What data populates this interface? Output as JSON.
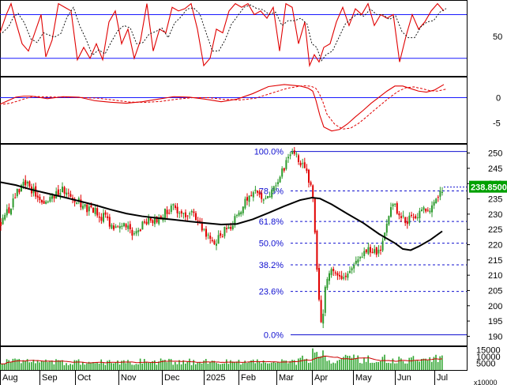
{
  "chart_data": {
    "type": "candlestick",
    "x_labels": [
      "Aug",
      "Sep",
      "Oct",
      "Nov",
      "Dec",
      "2025",
      "Feb",
      "Mar",
      "Apr",
      "May",
      "Jun",
      "Jul"
    ],
    "price_panel": {
      "y_ticks": [
        "250",
        "245",
        "240",
        "235",
        "230",
        "225",
        "220",
        "215",
        "210",
        "205",
        "200",
        "195",
        "190"
      ],
      "ylim": [
        187,
        253
      ],
      "current_price_label": "238.8500",
      "current_price": 238.85,
      "fibonacci": {
        "high": 250.5,
        "low": 190.5,
        "levels": [
          {
            "label": "100.0%",
            "value": 250.5
          },
          {
            "label": "78.6%",
            "value": 237.6
          },
          {
            "label": "61.8%",
            "value": 227.6
          },
          {
            "label": "50.0%",
            "value": 220.5
          },
          {
            "label": "38.2%",
            "value": 213.4
          },
          {
            "label": "23.6%",
            "value": 204.7
          },
          {
            "label": "0.0%",
            "value": 190.5
          }
        ]
      },
      "moving_average_points": [
        [
          0,
          240.5
        ],
        [
          20,
          239.5
        ],
        [
          40,
          238
        ],
        [
          60,
          236.8
        ],
        [
          80,
          235.6
        ],
        [
          100,
          234.3
        ],
        [
          120,
          233
        ],
        [
          140,
          231.5
        ],
        [
          160,
          230.2
        ],
        [
          180,
          229.3
        ],
        [
          200,
          228.7
        ],
        [
          220,
          228.2
        ],
        [
          240,
          227.6
        ],
        [
          260,
          227.1
        ],
        [
          280,
          226.6
        ],
        [
          300,
          226.8
        ],
        [
          320,
          228.3
        ],
        [
          340,
          230.4
        ],
        [
          360,
          232.6
        ],
        [
          380,
          234.6
        ],
        [
          395,
          235.4
        ],
        [
          405,
          235.1
        ],
        [
          420,
          233.2
        ],
        [
          440,
          230.1
        ],
        [
          460,
          227.1
        ],
        [
          480,
          223.5
        ],
        [
          500,
          220.5
        ],
        [
          510,
          218.6
        ],
        [
          520,
          218.2
        ],
        [
          530,
          219.4
        ],
        [
          545,
          221.6
        ],
        [
          560,
          224.4
        ]
      ],
      "price_path_points": [
        [
          0,
          227
        ],
        [
          10,
          231
        ],
        [
          20,
          236
        ],
        [
          30,
          241
        ],
        [
          40,
          238
        ],
        [
          50,
          235
        ],
        [
          60,
          233
        ],
        [
          70,
          236
        ],
        [
          80,
          238
        ],
        [
          90,
          236
        ],
        [
          100,
          234
        ],
        [
          110,
          232
        ],
        [
          120,
          231
        ],
        [
          130,
          229
        ],
        [
          140,
          227
        ],
        [
          150,
          225
        ],
        [
          160,
          227
        ],
        [
          170,
          223
        ],
        [
          180,
          226
        ],
        [
          190,
          228
        ],
        [
          200,
          229
        ],
        [
          210,
          231
        ],
        [
          220,
          232
        ],
        [
          230,
          230
        ],
        [
          240,
          231
        ],
        [
          250,
          229
        ],
        [
          260,
          224
        ],
        [
          270,
          221
        ],
        [
          280,
          223
        ],
        [
          290,
          226
        ],
        [
          300,
          229
        ],
        [
          310,
          234
        ],
        [
          320,
          238
        ],
        [
          330,
          235
        ],
        [
          340,
          237
        ],
        [
          350,
          240
        ],
        [
          360,
          245
        ],
        [
          365,
          248
        ],
        [
          370,
          250
        ],
        [
          380,
          247
        ],
        [
          390,
          242
        ],
        [
          395,
          238
        ],
        [
          398,
          228
        ],
        [
          401,
          213
        ],
        [
          405,
          200
        ],
        [
          408,
          192
        ],
        [
          412,
          208
        ],
        [
          420,
          212
        ],
        [
          430,
          210
        ],
        [
          440,
          211
        ],
        [
          450,
          213
        ],
        [
          460,
          216
        ],
        [
          470,
          219
        ],
        [
          480,
          217
        ],
        [
          485,
          223
        ],
        [
          495,
          233
        ],
        [
          505,
          231
        ],
        [
          515,
          228
        ],
        [
          525,
          230
        ],
        [
          535,
          231
        ],
        [
          545,
          232
        ],
        [
          555,
          236
        ],
        [
          562,
          239
        ]
      ]
    },
    "oscillator_panel_1": {
      "y_ticks": [
        "50"
      ],
      "levels": [
        80,
        20
      ],
      "ylim": [
        -3,
        100
      ],
      "k_points": [
        [
          0,
          55
        ],
        [
          8,
          80
        ],
        [
          14,
          95
        ],
        [
          20,
          70
        ],
        [
          28,
          40
        ],
        [
          36,
          30
        ],
        [
          44,
          55
        ],
        [
          52,
          80
        ],
        [
          58,
          22
        ],
        [
          66,
          45
        ],
        [
          74,
          95
        ],
        [
          82,
          90
        ],
        [
          90,
          85
        ],
        [
          98,
          18
        ],
        [
          106,
          35
        ],
        [
          114,
          20
        ],
        [
          122,
          40
        ],
        [
          130,
          18
        ],
        [
          138,
          70
        ],
        [
          146,
          85
        ],
        [
          154,
          40
        ],
        [
          162,
          60
        ],
        [
          170,
          20
        ],
        [
          178,
          45
        ],
        [
          186,
          95
        ],
        [
          194,
          30
        ],
        [
          202,
          60
        ],
        [
          210,
          55
        ],
        [
          218,
          90
        ],
        [
          226,
          85
        ],
        [
          234,
          88
        ],
        [
          242,
          95
        ],
        [
          250,
          60
        ],
        [
          258,
          10
        ],
        [
          266,
          20
        ],
        [
          274,
          60
        ],
        [
          282,
          55
        ],
        [
          290,
          85
        ],
        [
          298,
          95
        ],
        [
          306,
          90
        ],
        [
          314,
          95
        ],
        [
          322,
          80
        ],
        [
          330,
          85
        ],
        [
          338,
          75
        ],
        [
          346,
          90
        ],
        [
          354,
          30
        ],
        [
          362,
          95
        ],
        [
          370,
          90
        ],
        [
          378,
          40
        ],
        [
          386,
          70
        ],
        [
          392,
          10
        ],
        [
          398,
          25
        ],
        [
          404,
          15
        ],
        [
          410,
          35
        ],
        [
          418,
          40
        ],
        [
          426,
          70
        ],
        [
          434,
          90
        ],
        [
          442,
          65
        ],
        [
          450,
          88
        ],
        [
          458,
          80
        ],
        [
          466,
          95
        ],
        [
          474,
          65
        ],
        [
          482,
          80
        ],
        [
          490,
          75
        ],
        [
          498,
          80
        ],
        [
          506,
          15
        ],
        [
          514,
          50
        ],
        [
          522,
          80
        ],
        [
          530,
          60
        ],
        [
          538,
          70
        ],
        [
          546,
          85
        ],
        [
          554,
          95
        ],
        [
          562,
          85
        ]
      ]
    },
    "oscillator_panel_2": {
      "y_ticks": [
        "0",
        "-5"
      ],
      "zero_line": 0,
      "ylim": [
        -9,
        4
      ],
      "line_points": [
        [
          0,
          -1.3
        ],
        [
          10,
          -0.6
        ],
        [
          20,
          0.1
        ],
        [
          30,
          0.3
        ],
        [
          40,
          0.3
        ],
        [
          60,
          -0.2
        ],
        [
          80,
          0.2
        ],
        [
          100,
          0.1
        ],
        [
          120,
          -0.6
        ],
        [
          140,
          -0.9
        ],
        [
          160,
          -1.1
        ],
        [
          180,
          -0.8
        ],
        [
          200,
          -0.3
        ],
        [
          220,
          0.2
        ],
        [
          240,
          0.1
        ],
        [
          260,
          -0.3
        ],
        [
          280,
          -0.8
        ],
        [
          300,
          -0.3
        ],
        [
          320,
          0.8
        ],
        [
          340,
          2.2
        ],
        [
          360,
          2.6
        ],
        [
          380,
          2.3
        ],
        [
          390,
          1.9
        ],
        [
          396,
          1.3
        ],
        [
          400,
          -0.5
        ],
        [
          405,
          -3.5
        ],
        [
          410,
          -5.8
        ],
        [
          420,
          -6.6
        ],
        [
          430,
          -6.3
        ],
        [
          440,
          -5.2
        ],
        [
          450,
          -3.8
        ],
        [
          460,
          -2.5
        ],
        [
          470,
          -1.1
        ],
        [
          480,
          0.1
        ],
        [
          490,
          1.3
        ],
        [
          500,
          2.3
        ],
        [
          510,
          2.3
        ],
        [
          520,
          1.8
        ],
        [
          530,
          1.3
        ],
        [
          540,
          1.1
        ],
        [
          550,
          1.5
        ],
        [
          562,
          2.6
        ]
      ]
    },
    "volume_panel": {
      "y_ticks": [
        "15000",
        "10000",
        "5000"
      ],
      "unit_label": "x10000",
      "ylim": [
        0,
        17500
      ]
    },
    "colors": {
      "up": "#2d9a2d",
      "down": "#e00000",
      "moving_average": "#000000",
      "fibonacci": "#1010d0",
      "guide_line": "#1a1aff",
      "price_box": "#00a000",
      "volume_bar": "#2fa52f",
      "volume_average": "#cc0000"
    }
  }
}
